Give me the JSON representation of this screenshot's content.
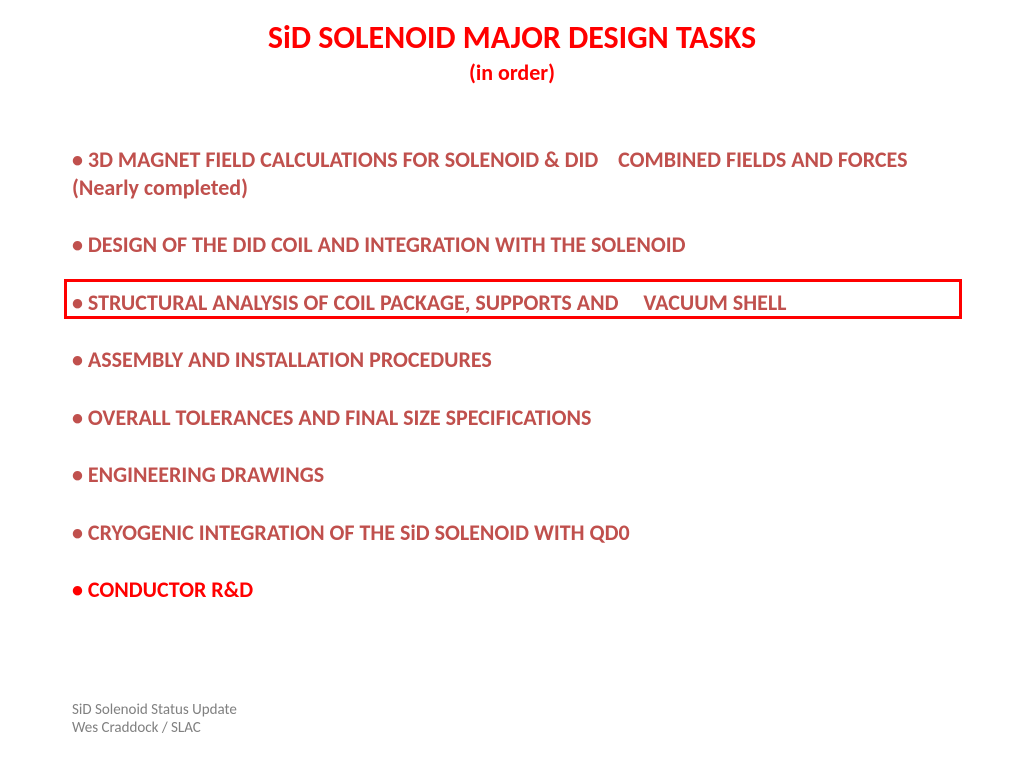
{
  "title": "SiD SOLENOID MAJOR DESIGN TASKS",
  "subtitle": "(in order)",
  "items": [
    {
      "text": "• 3D MAGNET FIELD CALCULATIONS FOR SOLENOID & DID    COMBINED FIELDS AND FORCES (Nearly completed)",
      "bright": false
    },
    {
      "text": "• DESIGN OF THE DID COIL AND INTEGRATION WITH THE SOLENOID",
      "bright": false
    },
    {
      "text": "• STRUCTURAL ANALYSIS OF COIL PACKAGE, SUPPORTS AND     VACUUM SHELL",
      "bright": false
    },
    {
      "text": "• ASSEMBLY AND INSTALLATION PROCEDURES",
      "bright": false
    },
    {
      "text": "• OVERALL TOLERANCES AND FINAL SIZE SPECIFICATIONS",
      "bright": false
    },
    {
      "text": "• ENGINEERING DRAWINGS",
      "bright": false
    },
    {
      "text": "• CRYOGENIC INTEGRATION OF THE SiD SOLENOID WITH QD0",
      "bright": false
    },
    {
      "text": "• CONDUCTOR R&D",
      "bright": true
    }
  ],
  "footer": {
    "line1": "SiD Solenoid Status Update",
    "line2": "Wes Craddock / SLAC"
  },
  "colors": {
    "title": "#ff0000",
    "body_text": "#c0504d",
    "bright_text": "#ff0000",
    "box_border": "#ff0000",
    "footer_text": "#808080",
    "background": "#ffffff"
  }
}
